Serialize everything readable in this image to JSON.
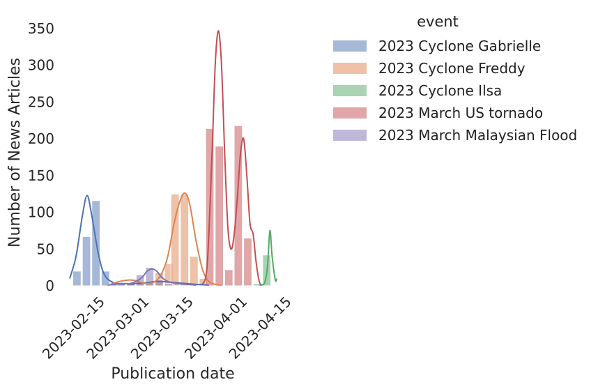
{
  "chart_data": {
    "type": "bar",
    "xlabel": "Publication date",
    "ylabel": "Number of News Articles",
    "ylim": [
      0,
      350
    ],
    "yticks": [
      0,
      50,
      100,
      150,
      200,
      250,
      300,
      350
    ],
    "xticks": [
      "2023-02-15",
      "2023-03-01",
      "2023-03-15",
      "2023-04-01",
      "2023-04-15"
    ],
    "xlim": [
      "2023-02-05",
      "2023-04-11"
    ],
    "grid": false,
    "legend_placement": "outside-top-right",
    "legend_title": "event",
    "bin_width_days": 2.85,
    "series": [
      {
        "name": "2023 Cyclone Gabrielle",
        "color": "#4C72B0",
        "bins": [
          {
            "start": "2023-02-06",
            "value": 20
          },
          {
            "start": "2023-02-09",
            "value": 67
          },
          {
            "start": "2023-02-12",
            "value": 116
          },
          {
            "start": "2023-02-15",
            "value": 20
          },
          {
            "start": "2023-02-18",
            "value": 5
          },
          {
            "start": "2023-02-20",
            "value": 3
          },
          {
            "start": "2023-02-23",
            "value": 3
          }
        ],
        "kde": [
          [
            0,
            10
          ],
          [
            2,
            40
          ],
          [
            4,
            95
          ],
          [
            5.5,
            123
          ],
          [
            7,
            95
          ],
          [
            9,
            45
          ],
          [
            11,
            15
          ],
          [
            14,
            4
          ],
          [
            17,
            3
          ],
          [
            20,
            3
          ],
          [
            24,
            4
          ],
          [
            28,
            6
          ],
          [
            34,
            4
          ],
          [
            40,
            2
          ],
          [
            44,
            1
          ]
        ]
      },
      {
        "name": "2023 Cyclone Freddy",
        "color": "#DD8452",
        "bins": [
          {
            "start": "2023-02-23",
            "value": 3
          },
          {
            "start": "2023-02-26",
            "value": 6
          },
          {
            "start": "2023-03-01",
            "value": 3
          },
          {
            "start": "2023-03-04",
            "value": 18
          },
          {
            "start": "2023-03-07",
            "value": 30
          },
          {
            "start": "2023-03-09",
            "value": 125
          },
          {
            "start": "2023-03-12",
            "value": 125
          },
          {
            "start": "2023-03-15",
            "value": 40
          },
          {
            "start": "2023-03-18",
            "value": 10
          }
        ],
        "kde": [
          [
            13,
            2
          ],
          [
            15,
            5
          ],
          [
            17,
            7
          ],
          [
            19,
            8
          ],
          [
            21,
            7
          ],
          [
            23,
            4
          ],
          [
            25,
            3
          ],
          [
            27,
            6
          ],
          [
            29,
            16
          ],
          [
            31,
            40
          ],
          [
            33,
            85
          ],
          [
            35,
            117
          ],
          [
            36.5,
            126
          ],
          [
            38,
            110
          ],
          [
            40,
            60
          ],
          [
            42,
            22
          ],
          [
            44,
            6
          ],
          [
            46,
            2
          ],
          [
            48,
            1
          ]
        ]
      },
      {
        "name": "2023 March US tornado",
        "color": "#C44E52",
        "bins": [
          {
            "start": "2023-03-20",
            "value": 214
          },
          {
            "start": "2023-03-23",
            "value": 190
          },
          {
            "start": "2023-03-26",
            "value": 22
          },
          {
            "start": "2023-03-29",
            "value": 218
          },
          {
            "start": "2023-04-01",
            "value": 65
          }
        ],
        "kde": [
          [
            42,
            2
          ],
          [
            43.5,
            30
          ],
          [
            45,
            180
          ],
          [
            46,
            300
          ],
          [
            47,
            347
          ],
          [
            48,
            300
          ],
          [
            49,
            180
          ],
          [
            50,
            80
          ],
          [
            51,
            50
          ],
          [
            52,
            70
          ],
          [
            53,
            120
          ],
          [
            54,
            180
          ],
          [
            55,
            200
          ],
          [
            56,
            150
          ],
          [
            57,
            85
          ],
          [
            58,
            70
          ],
          [
            59,
            30
          ],
          [
            60,
            5
          ],
          [
            61,
            1
          ]
        ]
      },
      {
        "name": "2023 Cyclone Ilsa",
        "color": "#55A868",
        "bins": [
          {
            "start": "2023-04-04",
            "value": 3
          },
          {
            "start": "2023-04-07",
            "value": 42
          }
        ],
        "kde": [
          [
            60,
            1
          ],
          [
            61.5,
            3
          ],
          [
            62.5,
            25
          ],
          [
            63.3,
            75
          ],
          [
            64,
            40
          ],
          [
            65,
            8
          ],
          [
            65.5,
            10
          ]
        ]
      },
      {
        "name": "2023 March Malaysian Flood",
        "color": "#8172B3",
        "bins": [
          {
            "start": "2023-02-18",
            "value": 3
          },
          {
            "start": "2023-02-20",
            "value": 3
          },
          {
            "start": "2023-02-23",
            "value": 3
          },
          {
            "start": "2023-02-26",
            "value": 15
          },
          {
            "start": "2023-03-01",
            "value": 25
          },
          {
            "start": "2023-03-04",
            "value": 8
          },
          {
            "start": "2023-03-07",
            "value": 3
          }
        ],
        "kde": [
          [
            12,
            1
          ],
          [
            16,
            3
          ],
          [
            19,
            3
          ],
          [
            21,
            6
          ],
          [
            23,
            12
          ],
          [
            24.5,
            20
          ],
          [
            26,
            23
          ],
          [
            27.5,
            20
          ],
          [
            29,
            12
          ],
          [
            31,
            6
          ],
          [
            34,
            3
          ],
          [
            37,
            2
          ],
          [
            40,
            1
          ]
        ]
      }
    ]
  }
}
